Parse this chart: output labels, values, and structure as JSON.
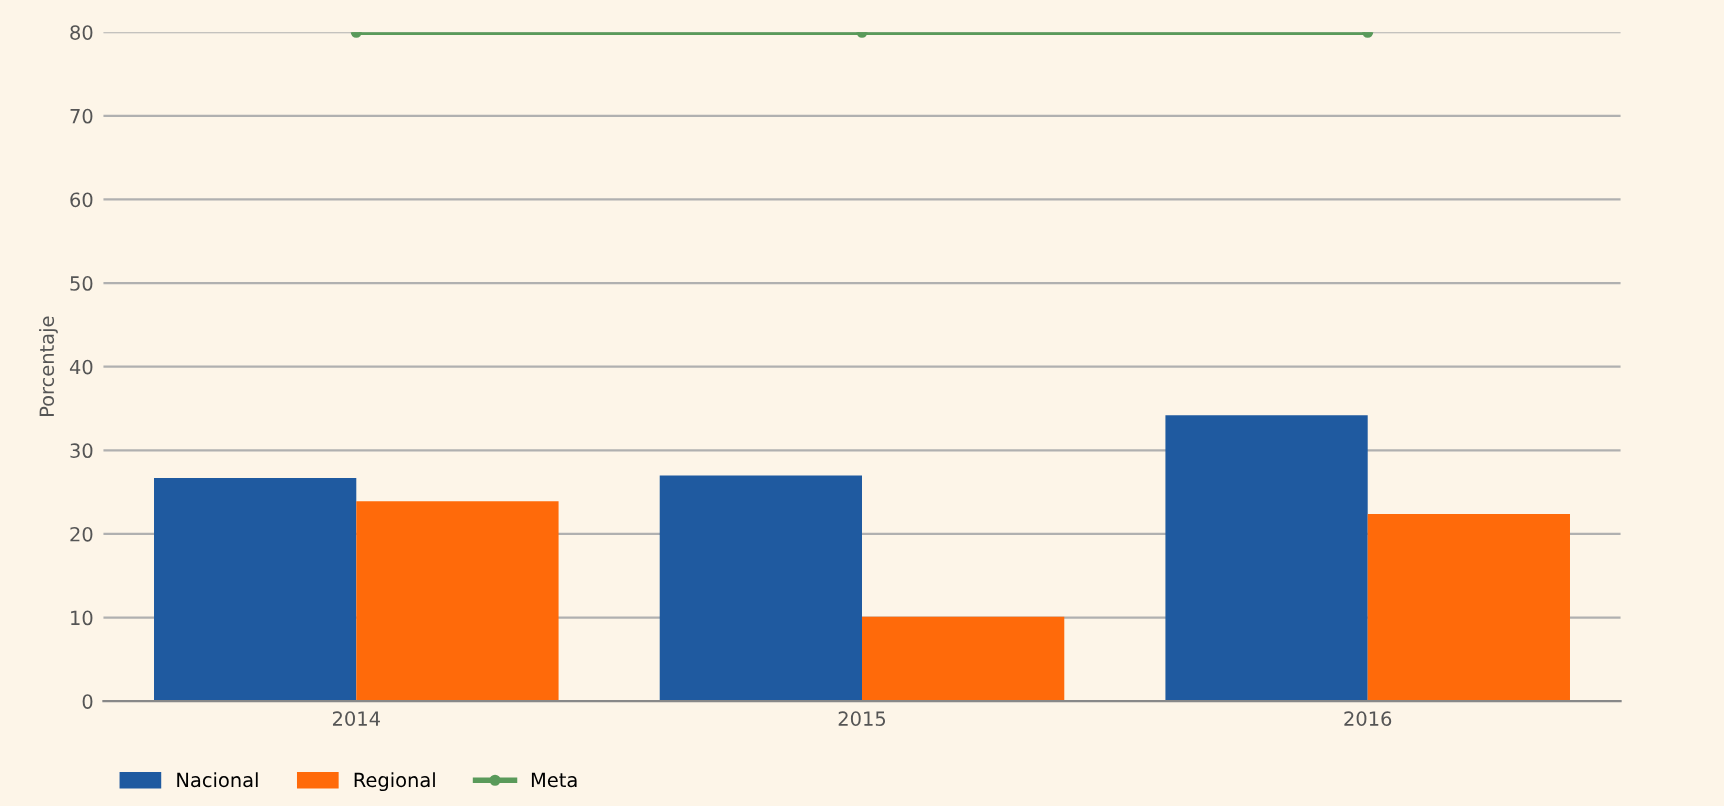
{
  "chart_data": {
    "type": "bar",
    "ylabel": "Porcentaje",
    "categories": [
      "2014",
      "2015",
      "2016"
    ],
    "series": [
      {
        "name": "Nacional",
        "color": "#1f5aa0",
        "values": [
          26.7,
          27.0,
          34.2
        ]
      },
      {
        "name": "Regional",
        "color": "#ff6a0a",
        "values": [
          23.9,
          10.1,
          22.4
        ]
      },
      {
        "name": "Meta",
        "type": "line",
        "color": "#5a9a5a",
        "marker": "circle",
        "values": [
          80,
          80,
          80
        ]
      }
    ],
    "ylim": [
      0,
      80
    ],
    "yticks": [
      0,
      10,
      20,
      30,
      40,
      50,
      60,
      70,
      80
    ],
    "grid": "y",
    "legend": "bottom left"
  }
}
